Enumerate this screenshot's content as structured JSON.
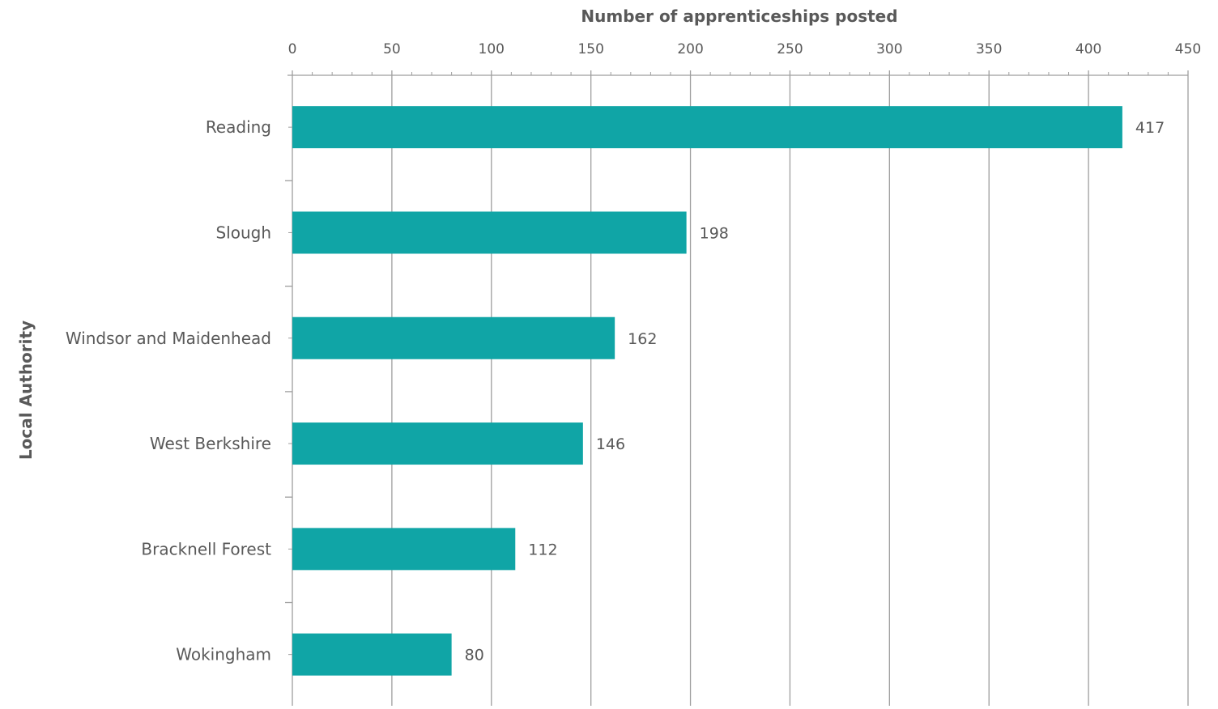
{
  "chart_data": {
    "type": "bar",
    "orientation": "horizontal",
    "x_axis_position": "top",
    "title": "",
    "xlabel": "Number of apprenticeships posted",
    "ylabel": "Local Authority",
    "categories": [
      "Reading",
      "Slough",
      "Windsor and Maidenhead",
      "West Berkshire",
      "Bracknell Forest",
      "Wokingham"
    ],
    "values": [
      417,
      198,
      162,
      146,
      112,
      80
    ],
    "xlim": [
      0,
      450
    ],
    "x_ticks": [
      0,
      50,
      100,
      150,
      200,
      250,
      300,
      350,
      400,
      450
    ],
    "x_minor_tick_step": 10,
    "data_labels": [
      "417",
      "198",
      "162",
      "146",
      "112",
      "80"
    ],
    "grid": "vertical major gridlines",
    "legend": "none",
    "colors": {
      "bar": "#10A5A6",
      "grid": "#9E9E9E",
      "text": "#595959"
    }
  }
}
